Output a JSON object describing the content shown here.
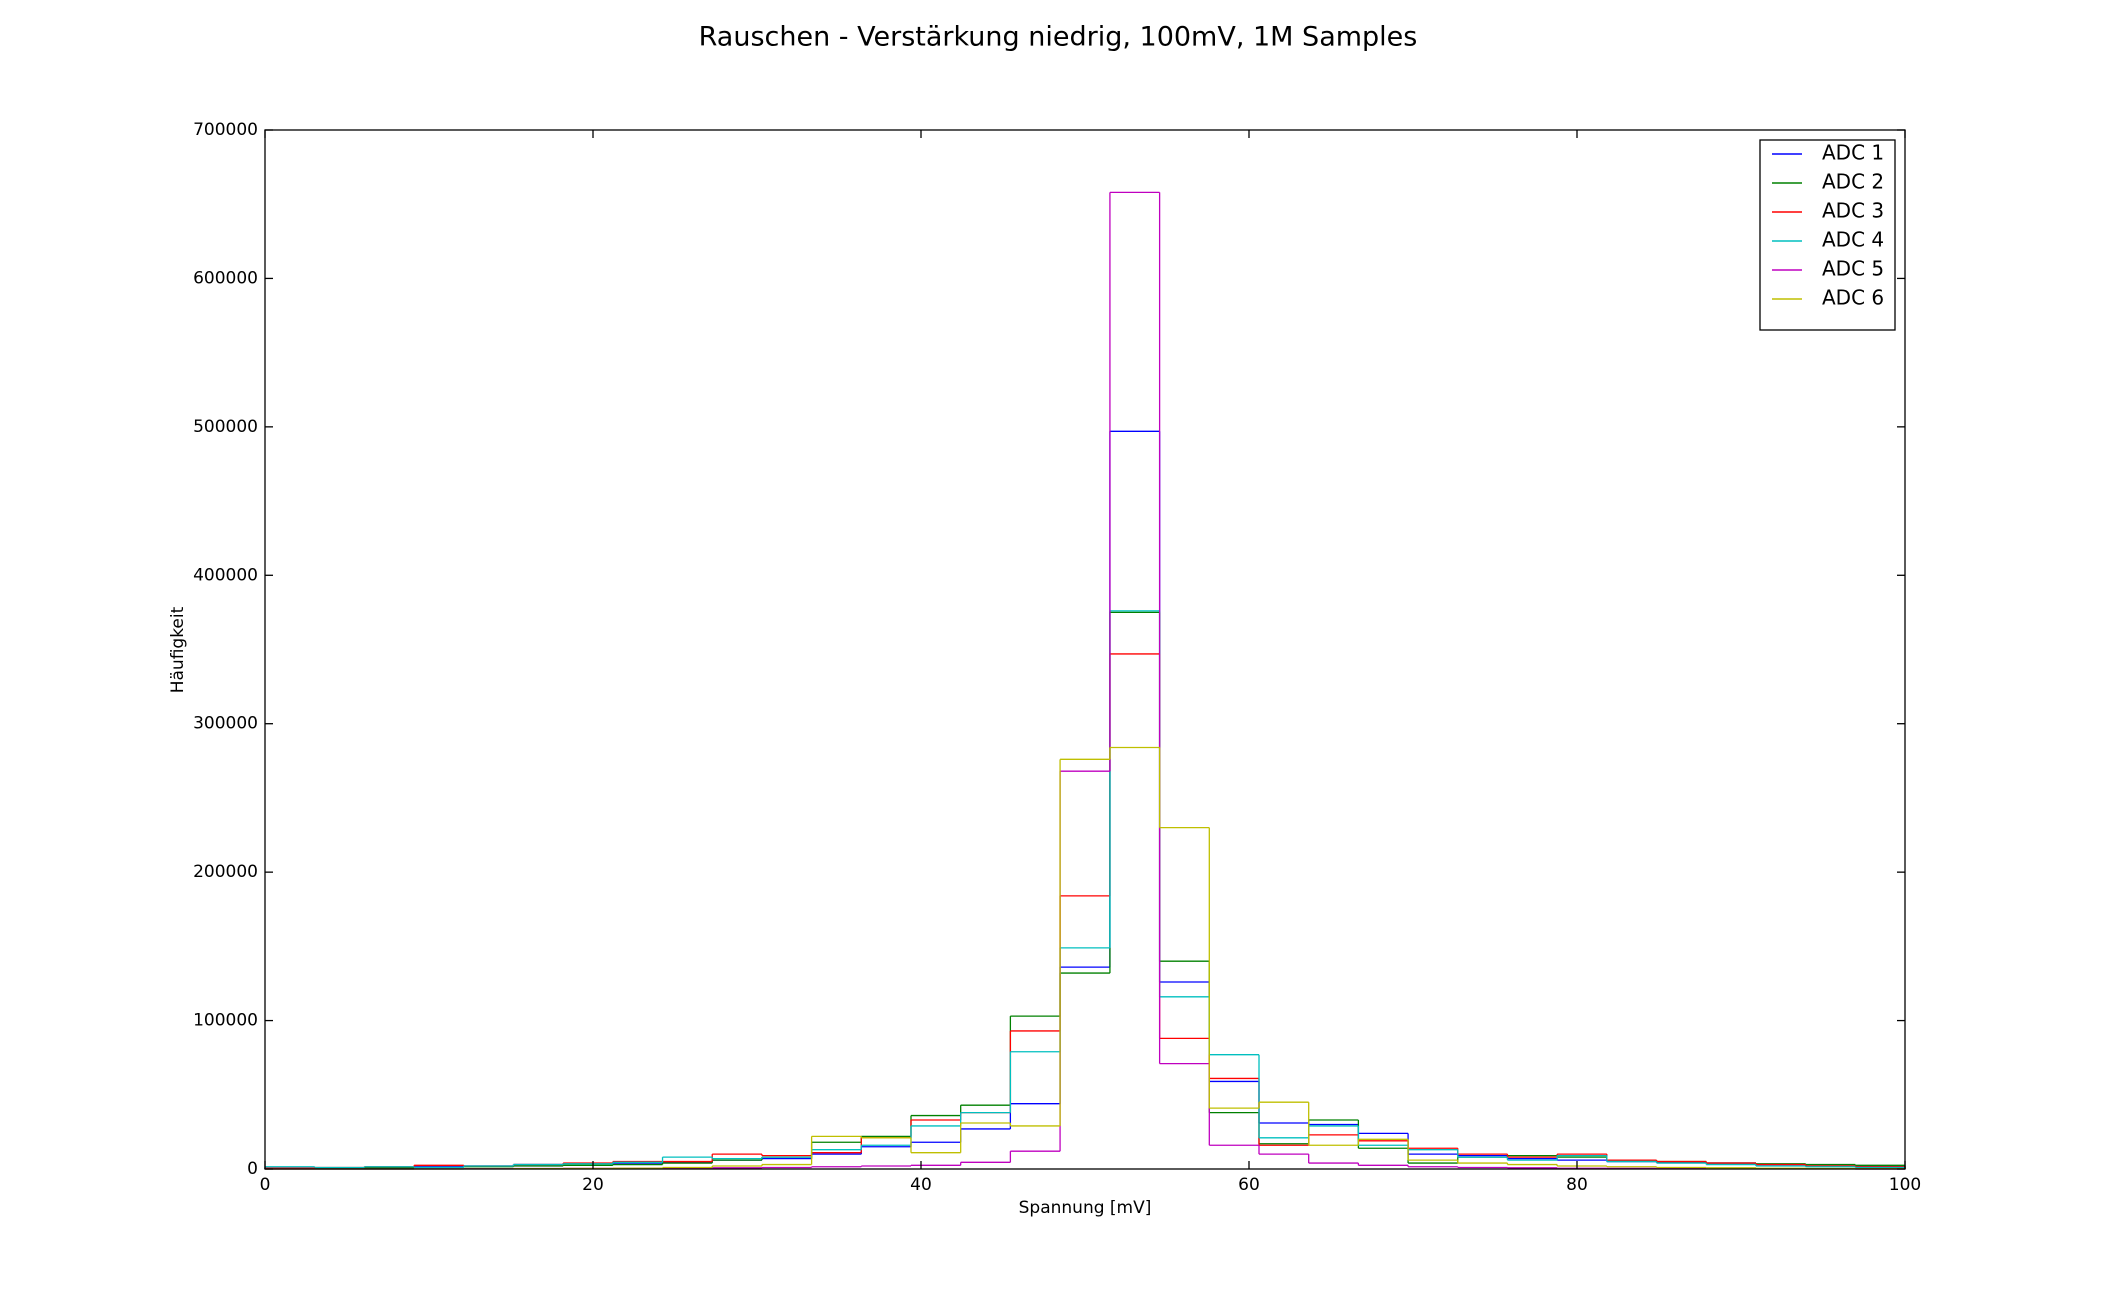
{
  "chart_data": {
    "type": "histogram",
    "title": "Rauschen - Verstärkung niedrig, 100mV, 1M Samples",
    "x_label": "Spannung [mV]",
    "y_label": "Häufigkeit",
    "bins": [
      0,
      3.03,
      6.06,
      9.09,
      12.12,
      15.15,
      18.18,
      21.21,
      24.24,
      27.27,
      30.3,
      33.33,
      36.36,
      39.39,
      42.42,
      45.45,
      48.48,
      51.52,
      54.55,
      57.58,
      60.61,
      63.64,
      66.67,
      69.7,
      72.73,
      75.76,
      78.79,
      81.82,
      84.85,
      87.88,
      90.91,
      93.94,
      96.97,
      100
    ],
    "series": [
      {
        "name": "ADC 1",
        "color": "#0000ff",
        "values": [
          500,
          800,
          1000,
          1500,
          2000,
          3000,
          3500,
          4000,
          4500,
          6000,
          7000,
          10000,
          15000,
          18000,
          27000,
          44000,
          136000,
          497000,
          126000,
          59000,
          31000,
          30000,
          24000,
          10000,
          9000,
          7000,
          6000,
          5000,
          4500,
          4000,
          3000,
          2000,
          1500
        ]
      },
      {
        "name": "ADC 2",
        "color": "#008000",
        "values": [
          300,
          500,
          800,
          1000,
          1500,
          2000,
          2500,
          3000,
          4000,
          6000,
          8000,
          18000,
          22000,
          36000,
          43000,
          103000,
          132000,
          375000,
          140000,
          38000,
          17000,
          33000,
          14000,
          4000,
          8000,
          9000,
          8000,
          6000,
          5000,
          4000,
          3500,
          3000,
          2500
        ]
      },
      {
        "name": "ADC 3",
        "color": "#ff0000",
        "values": [
          500,
          1000,
          1500,
          2500,
          2000,
          3000,
          4000,
          5000,
          5000,
          10000,
          9000,
          11000,
          21000,
          33000,
          38000,
          93000,
          184000,
          347000,
          88000,
          61000,
          16000,
          23000,
          19000,
          14000,
          10000,
          8000,
          10000,
          6000,
          5000,
          4000,
          3000,
          2000,
          1500
        ]
      },
      {
        "name": "ADC 4",
        "color": "#00bfbf",
        "values": [
          1500,
          1000,
          1500,
          1000,
          2000,
          3000,
          3500,
          4500,
          8000,
          7000,
          8000,
          13000,
          16000,
          29000,
          38000,
          79000,
          149000,
          376000,
          116000,
          77000,
          21000,
          29000,
          16000,
          13000,
          8000,
          6000,
          9000,
          5000,
          4000,
          3000,
          2000,
          1500,
          1000
        ]
      },
      {
        "name": "ADC 5",
        "color": "#bf00bf",
        "values": [
          0,
          0,
          0,
          100,
          200,
          300,
          400,
          500,
          600,
          800,
          1000,
          1500,
          2000,
          2500,
          4500,
          12000,
          268000,
          658000,
          71000,
          16000,
          10000,
          4000,
          2500,
          1500,
          1000,
          800,
          500,
          400,
          300,
          200,
          100,
          100,
          0
        ]
      },
      {
        "name": "ADC 6",
        "color": "#bfbf00",
        "values": [
          0,
          0,
          0,
          0,
          100,
          200,
          300,
          500,
          1000,
          2000,
          3000,
          22000,
          21000,
          11000,
          31000,
          29000,
          276000,
          284000,
          230000,
          41000,
          45000,
          16000,
          20000,
          6000,
          4000,
          3000,
          2000,
          1500,
          1000,
          800,
          500,
          300,
          200
        ]
      }
    ],
    "xlim": [
      0,
      100
    ],
    "xticks": [
      0,
      20,
      40,
      60,
      80,
      100
    ],
    "ylim": [
      0,
      700000
    ],
    "yticks": [
      0,
      100000,
      200000,
      300000,
      400000,
      500000,
      600000,
      700000
    ],
    "legend": "upper right"
  }
}
